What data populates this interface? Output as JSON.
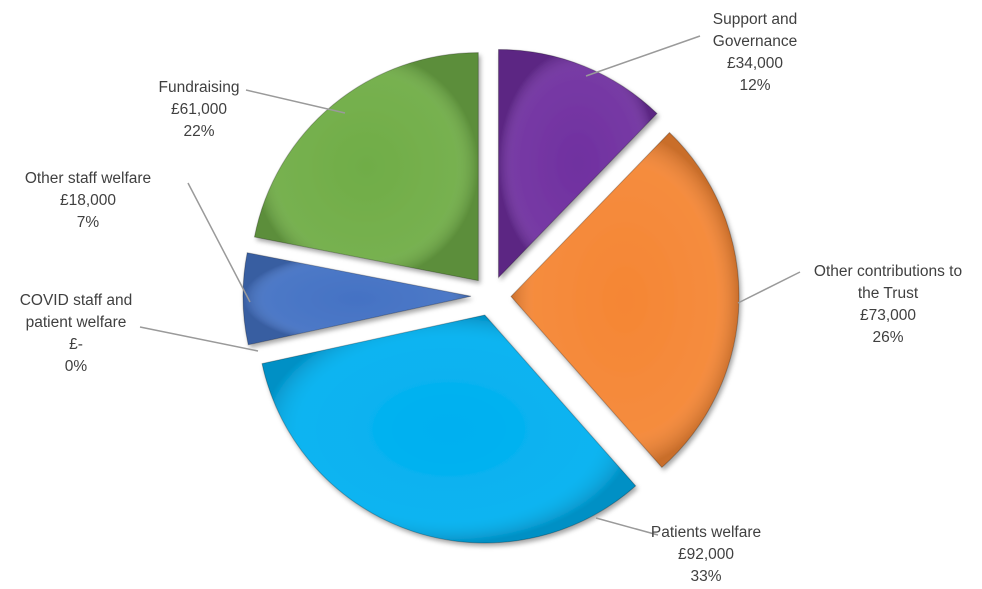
{
  "chart_data": {
    "type": "pie",
    "title": "",
    "exploded": true,
    "slices": [
      {
        "label_lines": [
          "Support and",
          "Governance"
        ],
        "value_text": "£34,000",
        "pct_text": "12%",
        "value": 34000,
        "percent": 12,
        "color": "#7030a0"
      },
      {
        "label_lines": [
          "Other contributions to",
          "the Trust"
        ],
        "value_text": "£73,000",
        "pct_text": "26%",
        "value": 73000,
        "percent": 26,
        "color": "#f58634"
      },
      {
        "label_lines": [
          "Patients welfare"
        ],
        "value_text": "£92,000",
        "pct_text": "33%",
        "value": 92000,
        "percent": 33,
        "color": "#00b0f0"
      },
      {
        "label_lines": [
          "COVID staff and",
          "patient welfare"
        ],
        "value_text": "£-",
        "pct_text": "0%",
        "value": 0,
        "percent": 0,
        "color": "#7f7f7f"
      },
      {
        "label_lines": [
          "Other staff welfare"
        ],
        "value_text": "£18,000",
        "pct_text": "7%",
        "value": 18000,
        "percent": 7,
        "color": "#4472c4"
      },
      {
        "label_lines": [
          "Fundraising"
        ],
        "value_text": "£61,000",
        "pct_text": "22%",
        "value": 61000,
        "percent": 22,
        "color": "#70ad47"
      }
    ]
  }
}
